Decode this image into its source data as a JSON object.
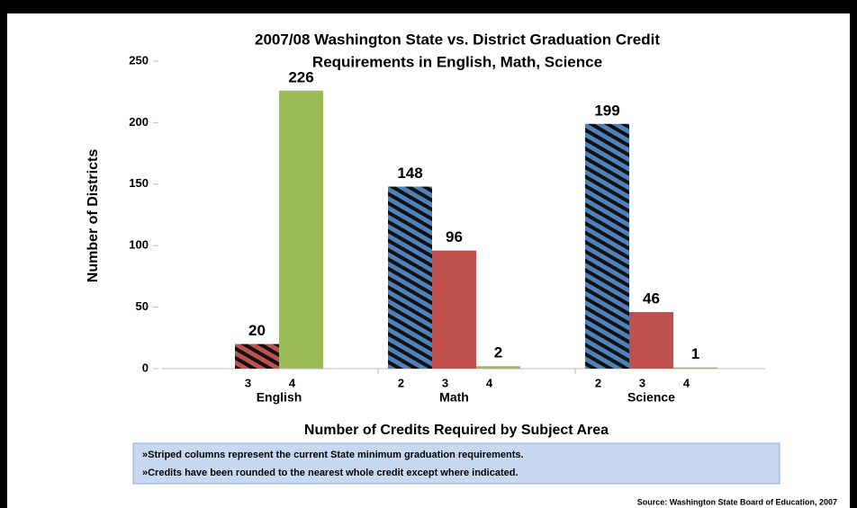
{
  "chart_data": {
    "type": "bar",
    "title": [
      "2007/08 Washington State vs. District Graduation Credit",
      "Requirements in English, Math, Science"
    ],
    "y_label": "Number of Districts",
    "x_label": "Number of Credits Required by Subject Area",
    "ylim": [
      0,
      250
    ],
    "yticks": [
      0,
      50,
      100,
      150,
      200,
      250
    ],
    "groups": [
      {
        "name": "English",
        "bars": [
          {
            "label": "3",
            "value": 20,
            "color": "#c0504d",
            "striped": true
          },
          {
            "label": "4",
            "value": 226,
            "color": "#9bbb59",
            "striped": false
          }
        ]
      },
      {
        "name": "Math",
        "bars": [
          {
            "label": "2",
            "value": 148,
            "color": "#4f81bd",
            "striped": true
          },
          {
            "label": "3",
            "value": 96,
            "color": "#c0504d",
            "striped": false
          },
          {
            "label": "4",
            "value": 2,
            "color": "#9bbb59",
            "striped": false
          }
        ]
      },
      {
        "name": "Science",
        "bars": [
          {
            "label": "2",
            "value": 199,
            "color": "#4f81bd",
            "striped": true
          },
          {
            "label": "3",
            "value": 46,
            "color": "#c0504d",
            "striped": false
          },
          {
            "label": "4",
            "value": 1,
            "color": "#9bbb59",
            "striped": false
          }
        ]
      }
    ],
    "notes": [
      "»Striped columns represent the current State minimum graduation requirements.",
      "»Credits have been rounded to the nearest whole credit except where indicated."
    ],
    "source": "Source: Washington State Board of Education, 2007"
  }
}
